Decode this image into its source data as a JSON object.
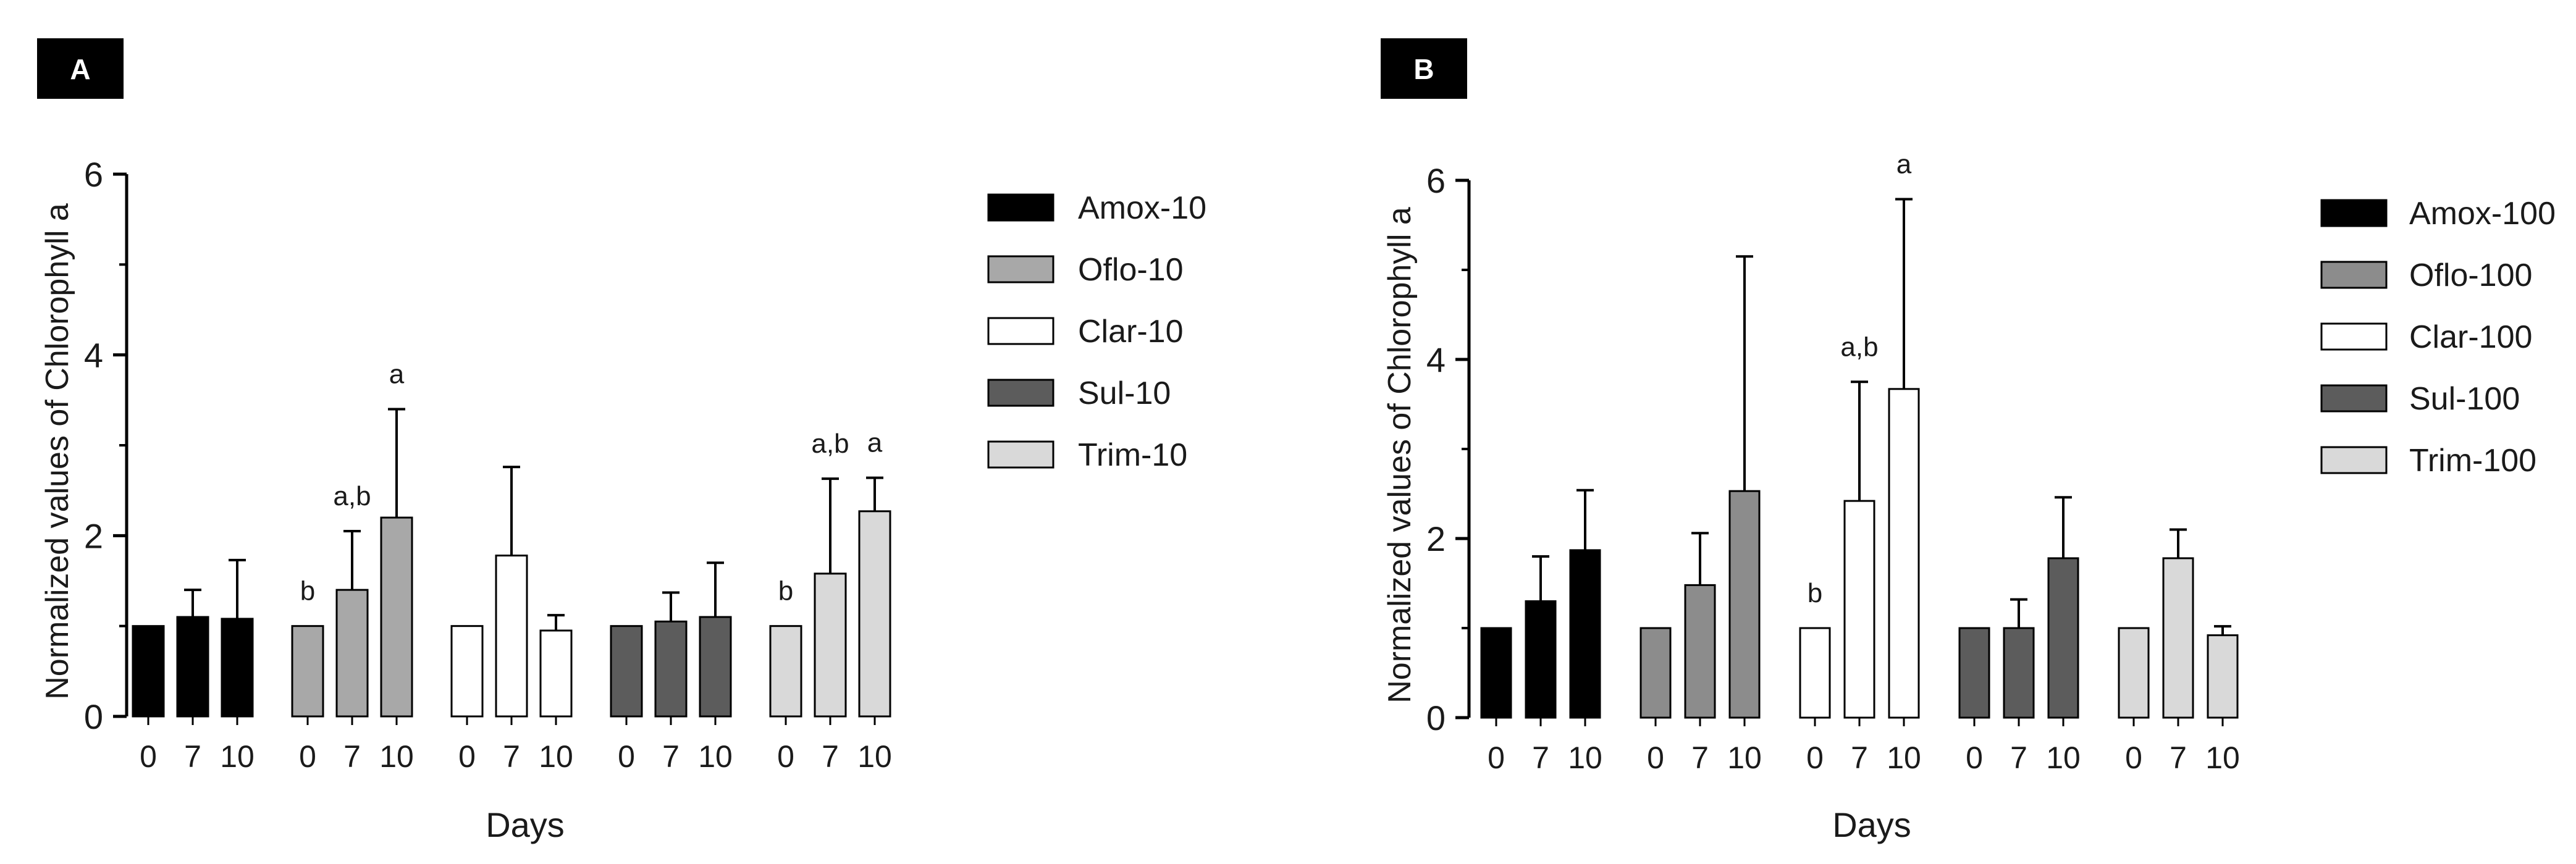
{
  "chart_data": [
    {
      "panel_label": "A",
      "type": "bar",
      "ylabel": "Normalized values of Chlorophyll a",
      "xlabel": "Days",
      "ylim": [
        0,
        6
      ],
      "yticks": [
        "0",
        "2",
        "4",
        "6"
      ],
      "day_labels": [
        "0",
        "7",
        "10"
      ],
      "legend_position": "right",
      "series": [
        {
          "name": "Amox-10",
          "color": "#000000",
          "values": [
            1.0,
            1.1,
            1.08
          ],
          "errors": [
            0.0,
            0.3,
            0.65
          ],
          "sig": [
            "",
            "",
            ""
          ]
        },
        {
          "name": "Oflo-10",
          "color": "#a8a8a8",
          "values": [
            1.0,
            1.4,
            2.2
          ],
          "errors": [
            0.0,
            0.65,
            1.2
          ],
          "sig": [
            "b",
            "a,b",
            "a"
          ]
        },
        {
          "name": "Clar-10",
          "color": "#ffffff",
          "values": [
            1.0,
            1.78,
            0.95
          ],
          "errors": [
            0.0,
            0.98,
            0.17
          ],
          "sig": [
            "",
            "",
            ""
          ]
        },
        {
          "name": "Sul-10",
          "color": "#5c5c5c",
          "values": [
            1.0,
            1.05,
            1.1
          ],
          "errors": [
            0.0,
            0.32,
            0.6
          ],
          "sig": [
            "",
            "",
            ""
          ]
        },
        {
          "name": "Trim-10",
          "color": "#d9d9d9",
          "values": [
            1.0,
            1.58,
            2.27
          ],
          "errors": [
            0.0,
            1.05,
            0.37
          ],
          "sig": [
            "b",
            "a,b",
            "a"
          ]
        }
      ]
    },
    {
      "panel_label": "B",
      "type": "bar",
      "ylabel": "Normalized values of Chlorophyll a",
      "xlabel": "Days",
      "ylim": [
        0,
        6
      ],
      "yticks": [
        "0",
        "2",
        "4",
        "6"
      ],
      "day_labels": [
        "0",
        "7",
        "10"
      ],
      "legend_position": "right",
      "series": [
        {
          "name": "Amox-100",
          "color": "#000000",
          "values": [
            1.0,
            1.3,
            1.87
          ],
          "errors": [
            0.0,
            0.5,
            0.67
          ],
          "sig": [
            "",
            "",
            ""
          ]
        },
        {
          "name": "Oflo-100",
          "color": "#8c8c8c",
          "values": [
            1.0,
            1.48,
            2.53
          ],
          "errors": [
            0.0,
            0.58,
            2.62
          ],
          "sig": [
            "",
            "",
            ""
          ]
        },
        {
          "name": "Clar-100",
          "color": "#ffffff",
          "values": [
            1.0,
            2.42,
            3.67
          ],
          "errors": [
            0.0,
            1.33,
            2.12
          ],
          "sig": [
            "b",
            "a,b",
            "a"
          ]
        },
        {
          "name": "Sul-100",
          "color": "#5c5c5c",
          "values": [
            1.0,
            1.0,
            1.78
          ],
          "errors": [
            0.0,
            0.32,
            0.68
          ],
          "sig": [
            "",
            "",
            ""
          ]
        },
        {
          "name": "Trim-100",
          "color": "#d9d9d9",
          "values": [
            1.0,
            1.78,
            0.92
          ],
          "errors": [
            0.0,
            0.32,
            0.1
          ],
          "sig": [
            "",
            "",
            ""
          ]
        }
      ]
    }
  ]
}
